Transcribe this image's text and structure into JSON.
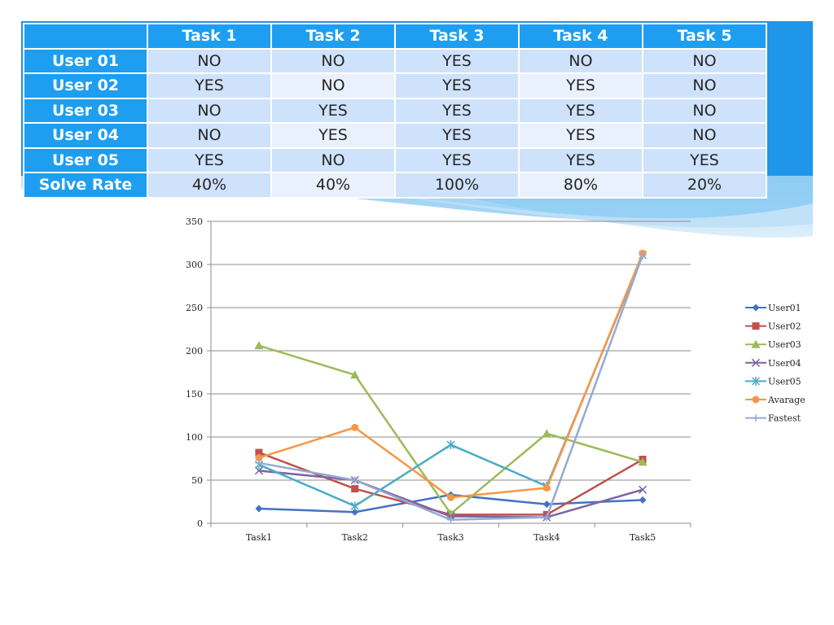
{
  "table": {
    "columns": [
      "Task 1",
      "Task 2",
      "Task 3",
      "Task 4",
      "Task 5"
    ],
    "rows": [
      {
        "label": "User 01",
        "cells": [
          "NO",
          "NO",
          "YES",
          "NO",
          "NO"
        ]
      },
      {
        "label": "User 02",
        "cells": [
          "YES",
          "NO",
          "YES",
          "YES",
          "NO"
        ]
      },
      {
        "label": "User 03",
        "cells": [
          "NO",
          "YES",
          "YES",
          "YES",
          "NO"
        ]
      },
      {
        "label": "User 04",
        "cells": [
          "NO",
          "YES",
          "YES",
          "YES",
          "NO"
        ]
      },
      {
        "label": "User 05",
        "cells": [
          "YES",
          "NO",
          "YES",
          "YES",
          "YES"
        ]
      },
      {
        "label": "Solve Rate",
        "cells": [
          "40%",
          "40%",
          "100%",
          "80%",
          "20%"
        ]
      }
    ],
    "header_color": "#1d9ef1"
  },
  "chart_data": {
    "type": "line",
    "x": [
      "Task1",
      "Task2",
      "Task3",
      "Task4",
      "Task5"
    ],
    "ylim": [
      0,
      350
    ],
    "yticks": [
      0,
      50,
      100,
      150,
      200,
      250,
      300,
      350
    ],
    "grid": true,
    "legend": "right",
    "series": [
      {
        "name": "User01",
        "color": "#4472c4",
        "marker": "diamond",
        "values": [
          17,
          13,
          33,
          22,
          27
        ]
      },
      {
        "name": "User02",
        "color": "#c0504d",
        "marker": "square",
        "values": [
          82,
          40,
          10,
          10,
          74
        ]
      },
      {
        "name": "User03",
        "color": "#9bbb59",
        "marker": "triangle",
        "values": [
          206,
          172,
          11,
          104,
          71
        ]
      },
      {
        "name": "User04",
        "color": "#8064a2",
        "marker": "x",
        "values": [
          61,
          50,
          8,
          7,
          39
        ]
      },
      {
        "name": "User05",
        "color": "#4bacc6",
        "marker": "star",
        "values": [
          68,
          20,
          91,
          43,
          311
        ]
      },
      {
        "name": "Avarage",
        "color": "#f79646",
        "marker": "circle",
        "values": [
          76,
          111,
          30,
          41,
          313
        ]
      },
      {
        "name": "Fastest",
        "color": "#95a9d4",
        "marker": "plus",
        "values": [
          70,
          50,
          4,
          7,
          311
        ]
      }
    ]
  }
}
